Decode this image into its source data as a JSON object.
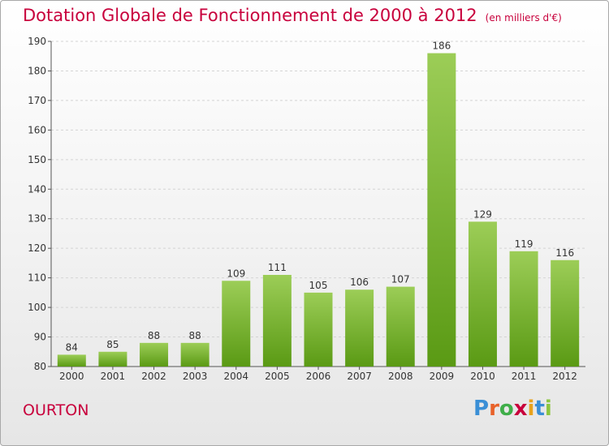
{
  "header": {
    "title": "Dotation Globale de Fonctionnement de 2000 à 2012",
    "unit": "(en milliers d'€)"
  },
  "footer": {
    "commune": "OURTON",
    "logo_text": "Proxiti",
    "logo_colors": [
      "#3a8fd6",
      "#e8622a",
      "#3fae49",
      "#c8003c",
      "#e8a21c",
      "#3a8fd6",
      "#8cc63f"
    ]
  },
  "colors": {
    "accent": "#c8003c",
    "bar_top": "#9ccd57",
    "bar_bottom": "#5a9a14"
  },
  "chart_data": {
    "type": "bar",
    "title": "Dotation Globale de Fonctionnement de 2000 à 2012",
    "xlabel": "",
    "ylabel": "",
    "categories": [
      "2000",
      "2001",
      "2002",
      "2003",
      "2004",
      "2005",
      "2006",
      "2007",
      "2008",
      "2009",
      "2010",
      "2011",
      "2012"
    ],
    "values": [
      84,
      85,
      88,
      88,
      109,
      111,
      105,
      106,
      107,
      186,
      129,
      119,
      116
    ],
    "ylim": [
      80,
      190
    ],
    "yticks": [
      80,
      90,
      100,
      110,
      120,
      130,
      140,
      150,
      160,
      170,
      180,
      190
    ],
    "grid": true
  }
}
